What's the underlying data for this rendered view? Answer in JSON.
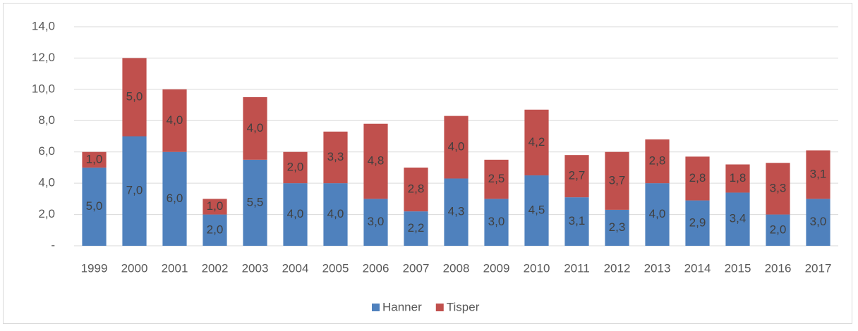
{
  "chart_data": {
    "type": "stacked_bar",
    "categories": [
      "1999",
      "2000",
      "2001",
      "2002",
      "2003",
      "2004",
      "2005",
      "2006",
      "2007",
      "2008",
      "2009",
      "2010",
      "2011",
      "2012",
      "2013",
      "2014",
      "2015",
      "2016",
      "2017"
    ],
    "series": [
      {
        "name": "Hanner",
        "color": "#4f81bd",
        "values": [
          5.0,
          7.0,
          6.0,
          2.0,
          5.5,
          4.0,
          4.0,
          3.0,
          2.2,
          4.3,
          3.0,
          4.5,
          3.1,
          2.3,
          4.0,
          2.9,
          3.4,
          2.0,
          3.0
        ],
        "value_labels": [
          "5,0",
          "7,0",
          "6,0",
          "2,0",
          "5,5",
          "4,0",
          "4,0",
          "3,0",
          "2,2",
          "4,3",
          "3,0",
          "4,5",
          "3,1",
          "2,3",
          "4,0",
          "2,9",
          "3,4",
          "2,0",
          "3,0"
        ]
      },
      {
        "name": "Tisper",
        "color": "#c0504d",
        "values": [
          1.0,
          5.0,
          4.0,
          1.0,
          4.0,
          2.0,
          3.3,
          4.8,
          2.8,
          4.0,
          2.5,
          4.2,
          2.7,
          3.7,
          2.8,
          2.8,
          1.8,
          3.3,
          3.1
        ],
        "value_labels": [
          "1,0",
          "5,0",
          "4,0",
          "1,0",
          "4,0",
          "2,0",
          "3,3",
          "4,8",
          "2,8",
          "4,0",
          "2,5",
          "4,2",
          "2,7",
          "3,7",
          "2,8",
          "2,8",
          "1,8",
          "3,3",
          "3,1"
        ]
      }
    ],
    "ylim": [
      0,
      14
    ],
    "yticks": [
      {
        "value": 0,
        "label": "-"
      },
      {
        "value": 2,
        "label": "2,0"
      },
      {
        "value": 4,
        "label": "4,0"
      },
      {
        "value": 6,
        "label": "6,0"
      },
      {
        "value": 8,
        "label": "8,0"
      },
      {
        "value": 10,
        "label": "10,0"
      },
      {
        "value": 12,
        "label": "12,0"
      },
      {
        "value": 14,
        "label": "14,0"
      }
    ],
    "grid": true,
    "legend": "bottom"
  }
}
